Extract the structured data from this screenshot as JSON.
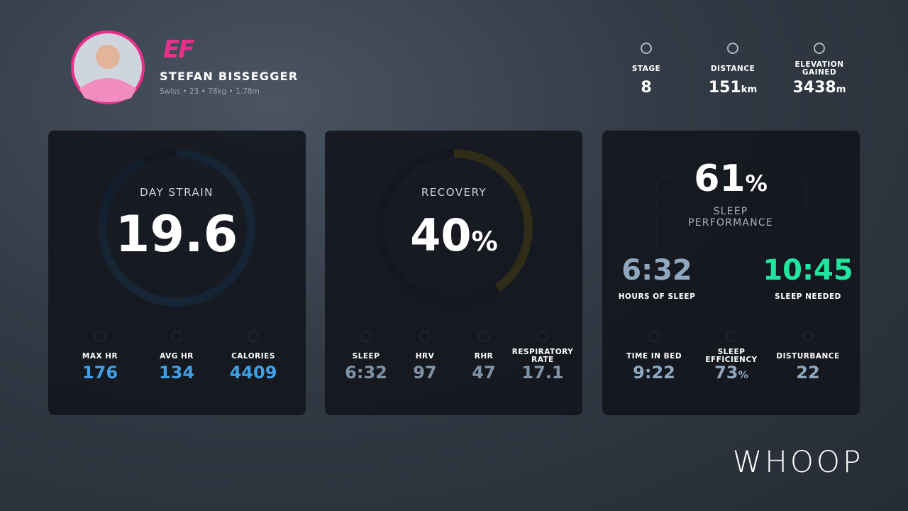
{
  "athlete": {
    "team": "EF",
    "name": "STEFAN BISSEGGER",
    "details": "Swiss • 23 • 78kg • 1.78m"
  },
  "stage_stats": [
    {
      "label": "STAGE",
      "value": "8"
    },
    {
      "label": "DISTANCE",
      "value": "151",
      "unit": "km"
    },
    {
      "label": "ELEVATION GAINED",
      "value": "3438",
      "unit": "m"
    }
  ],
  "strain": {
    "label": "DAY STRAIN",
    "value": "19.6",
    "stats": [
      {
        "label": "MAX HR",
        "value": "176"
      },
      {
        "label": "AVG HR",
        "value": "134"
      },
      {
        "label": "CALORIES",
        "value": "4409"
      }
    ]
  },
  "recovery": {
    "label": "RECOVERY",
    "value": 40,
    "unit": "%",
    "stats": [
      {
        "label": "SLEEP",
        "value": "6:32"
      },
      {
        "label": "HRV",
        "value": "97"
      },
      {
        "label": "RHR",
        "value": "47"
      },
      {
        "label": "RESPIRATORY RATE",
        "value": "17.1"
      }
    ]
  },
  "sleep": {
    "performance": "61",
    "unit": "%",
    "label": "SLEEP PERFORMANCE",
    "hours": {
      "value": "6:32",
      "label": "HOURS OF SLEEP"
    },
    "needed": {
      "value": "10:45",
      "label": "SLEEP NEEDED"
    },
    "stats": [
      {
        "label": "TIME IN BED",
        "value": "9:22"
      },
      {
        "label": "SLEEP EFFICIENCY",
        "value": "73",
        "unit": "%"
      },
      {
        "label": "DISTURBANCE",
        "value": "22"
      }
    ]
  },
  "brand": "WHOOP"
}
